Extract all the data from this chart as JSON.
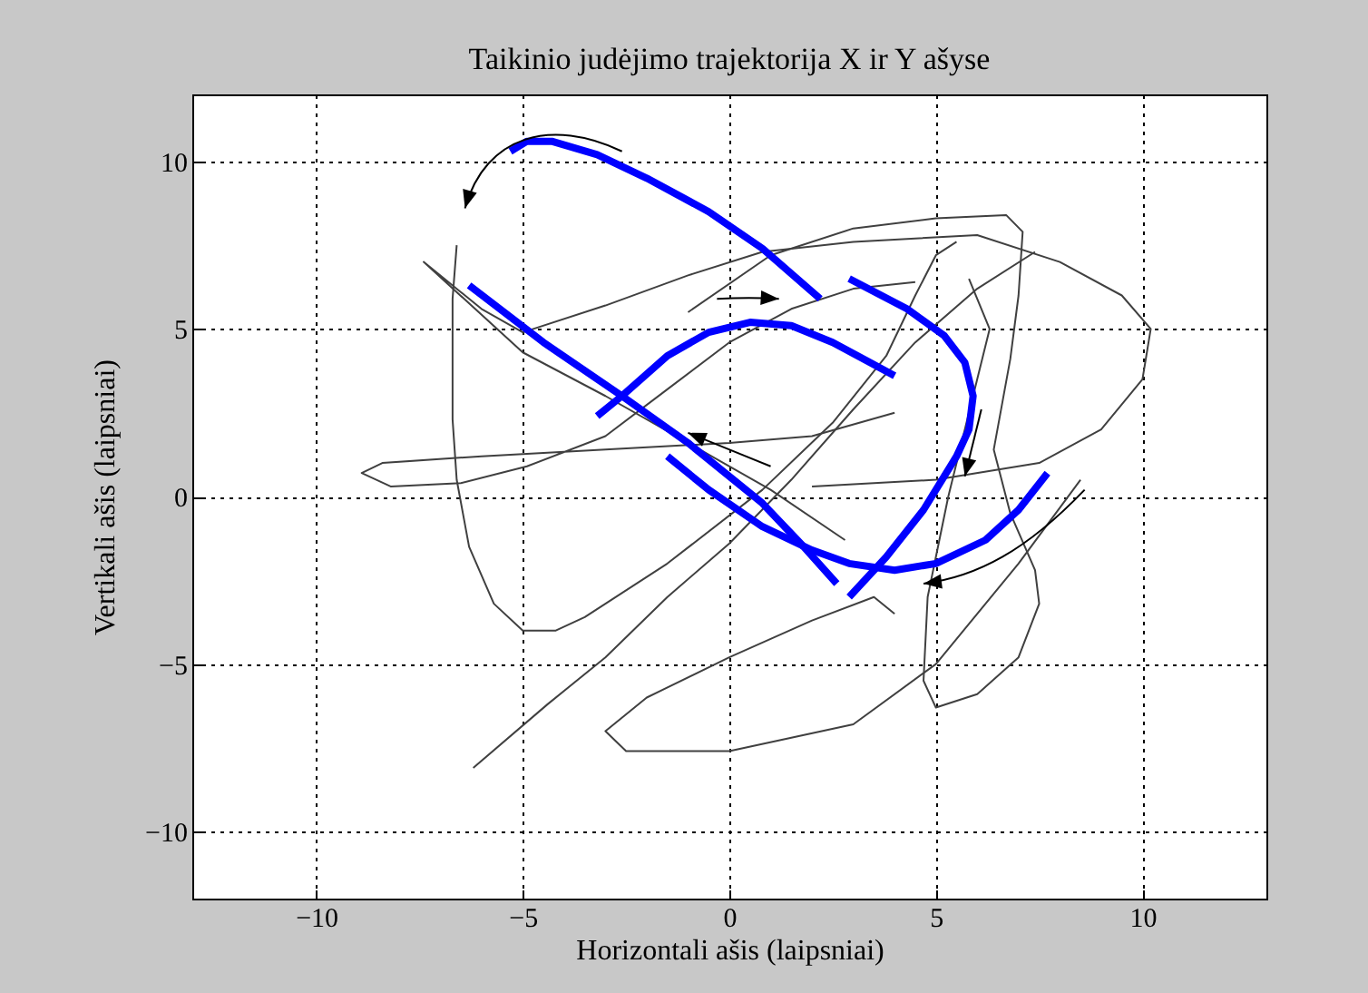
{
  "chart_data": {
    "type": "line",
    "title": "Taikinio judėjimo trajektorija X ir Y ašyse",
    "xlabel": "Horizontali ašis (laipsniai)",
    "ylabel": "Vertikali ašis (laipsniai)",
    "xlim": [
      -13,
      13
    ],
    "ylim": [
      -12,
      12
    ],
    "xticks": [
      -10,
      -5,
      0,
      5,
      10
    ],
    "yticks": [
      -10,
      -5,
      0,
      5,
      10
    ],
    "grid": true,
    "legend": false,
    "series": [
      {
        "color": "#404040",
        "x": [
          -6.6,
          -6.7,
          -6.7,
          -6.6,
          -6.3,
          -5.7,
          -5.0,
          -4.2,
          -3.5,
          -1.5,
          0.8,
          2.5,
          3.8,
          4.5,
          5.0,
          5.5
        ],
        "values": [
          7.5,
          5.9,
          2.3,
          0.5,
          -1.5,
          -3.2,
          -4.0,
          -4.0,
          -3.6,
          -2.0,
          0.2,
          2.2,
          4.2,
          6.0,
          7.2,
          7.6
        ]
      },
      {
        "color": "#404040",
        "x": [
          2.8,
          1,
          -1,
          -3,
          -5,
          -7.4,
          -6,
          -5,
          -3,
          -1,
          0.8,
          3,
          6,
          8,
          9.5,
          10.2,
          10,
          9,
          7.5,
          5,
          2
        ],
        "values": [
          -1.3,
          0.2,
          1.6,
          3.0,
          4.3,
          7.0,
          5.6,
          4.9,
          5.7,
          6.6,
          7.3,
          7.6,
          7.8,
          7.0,
          6.0,
          5.0,
          3.5,
          2,
          1,
          0.5,
          0.3
        ]
      },
      {
        "color": "#404040",
        "x": [
          4,
          2,
          0,
          -3,
          -6,
          -8.4,
          -8.9,
          -8.2,
          -6.5,
          -4.9,
          -3,
          -1.5,
          0,
          1.5,
          3,
          4.5
        ],
        "values": [
          2.5,
          1.8,
          1.6,
          1.4,
          1.2,
          1.0,
          0.7,
          0.3,
          0.4,
          0.9,
          1.8,
          3.2,
          4.6,
          5.6,
          6.2,
          6.4
        ]
      },
      {
        "color": "#404040",
        "x": [
          -1,
          1,
          3,
          5,
          6.7,
          7.1,
          7.0,
          6.8,
          6.4,
          6.8,
          7.4,
          7.5,
          7.0,
          6.0,
          5.0,
          4.7,
          4.8,
          5.3,
          6,
          6.3,
          5.8
        ],
        "values": [
          5.5,
          7.2,
          8.0,
          8.3,
          8.4,
          7.9,
          6,
          4.1,
          1.4,
          -0.5,
          -2.2,
          -3.2,
          -4.8,
          -5.9,
          -6.3,
          -5.5,
          -3,
          0,
          3.5,
          5,
          6.5
        ]
      },
      {
        "color": "#404040",
        "x": [
          8.5,
          7,
          5,
          3,
          0,
          -2.5,
          -3.0,
          -2,
          0,
          2,
          3.5,
          4.0
        ],
        "values": [
          0.5,
          -2,
          -5,
          -6.8,
          -7.6,
          -7.6,
          -7.0,
          -6,
          -4.8,
          -3.7,
          -3.0,
          -3.5
        ]
      },
      {
        "color": "#404040",
        "x": [
          -6.2,
          -4.4,
          -3,
          -1.5,
          0,
          1.5,
          3,
          4.5,
          6,
          7.4
        ],
        "values": [
          -8.1,
          -6.2,
          -4.8,
          -3.0,
          -1.4,
          0.5,
          2.6,
          4.6,
          6.2,
          7.3
        ]
      },
      {
        "color": "#0000ff",
        "x": [
          -5.3,
          -4.9,
          -4.3,
          -3.2,
          -2.0,
          -0.5,
          0.8,
          2.2
        ],
        "values": [
          10.3,
          10.6,
          10.6,
          10.2,
          9.5,
          8.5,
          7.4,
          5.9
        ]
      },
      {
        "color": "#0000ff",
        "x": [
          2.9,
          4.3,
          5.2,
          5.7,
          5.9,
          5.8,
          5.5,
          4.7,
          3.8,
          2.9
        ],
        "values": [
          6.5,
          5.6,
          4.8,
          4.0,
          3.0,
          2.0,
          1.2,
          -0.4,
          -1.8,
          -3.0
        ]
      },
      {
        "color": "#0000ff",
        "x": [
          -6.3,
          -4.5,
          -2.6,
          -1,
          0.8,
          1.8,
          2.6
        ],
        "values": [
          6.3,
          4.6,
          3.0,
          1.6,
          -0.2,
          -1.5,
          -2.6
        ]
      },
      {
        "color": "#0000ff",
        "x": [
          -3.2,
          -2.6,
          -1.5,
          -0.5,
          0.5,
          1.5,
          2.5,
          3.4,
          4.0
        ],
        "values": [
          2.4,
          3.0,
          4.2,
          4.9,
          5.2,
          5.1,
          4.6,
          4.0,
          3.6
        ]
      },
      {
        "color": "#0000ff",
        "x": [
          -1.5,
          -0.5,
          0.8,
          2,
          2.9,
          4,
          5,
          6.2,
          7.0,
          7.7
        ],
        "values": [
          1.2,
          0.2,
          -0.9,
          -1.6,
          -2.0,
          -2.2,
          -2.0,
          -1.3,
          -0.4,
          0.7
        ]
      }
    ]
  }
}
